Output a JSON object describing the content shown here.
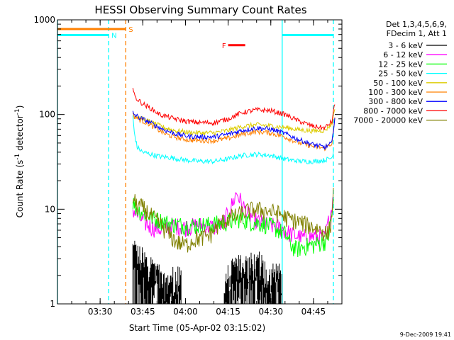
{
  "chart_data": {
    "type": "line",
    "title": "HESSI Observing Summary Count Rates",
    "xlabel": "Start Time (05-Apr-02 03:15:02)",
    "ylabel_main": "Count Rate (s",
    "ylabel_sup1": "-1",
    "ylabel_mid": " detector",
    "ylabel_sup2": "-1",
    "ylabel_end": ")",
    "y_scale": "log",
    "ylim": [
      1,
      1000
    ],
    "xlim_minutes": [
      0,
      100
    ],
    "x_ticks": [
      {
        "t": 15,
        "label": "03:30"
      },
      {
        "t": 30,
        "label": "03:45"
      },
      {
        "t": 45,
        "label": "04:00"
      },
      {
        "t": 60,
        "label": "04:15"
      },
      {
        "t": 75,
        "label": "04:30"
      },
      {
        "t": 90,
        "label": "04:45"
      }
    ],
    "y_ticks": [
      {
        "v": 1,
        "label": "1"
      },
      {
        "v": 10,
        "label": "10"
      },
      {
        "v": 100,
        "label": "100"
      },
      {
        "v": 1000,
        "label": "1000"
      }
    ],
    "legend_header": [
      "Det 1,3,4,5,6,9,",
      "FDecim 1, Att 1"
    ],
    "legend_position": "right",
    "series": [
      {
        "name": "3 - 6 keV",
        "color": "#000000",
        "x": [
          26.5,
          29,
          31,
          33,
          35,
          36,
          38,
          40,
          42,
          43,
          59,
          61,
          63,
          65,
          67,
          69,
          71,
          73,
          75,
          77.5,
          79
        ],
        "y": [
          3.5,
          2.8,
          2.5,
          2.3,
          2.5,
          1.6,
          1.5,
          1.8,
          1.6,
          1.8,
          1.6,
          2.0,
          2.2,
          2.5,
          2.3,
          2.4,
          2.5,
          2.0,
          1.8,
          2.6,
          1.5
        ]
      },
      {
        "name": "6 - 12 keV",
        "color": "#ff00ff",
        "x": [
          26.5,
          27.5,
          30,
          33,
          36,
          40,
          45,
          50,
          55,
          58,
          60,
          62,
          63,
          64,
          65,
          67,
          70,
          74,
          78,
          82,
          86,
          90,
          94,
          96.3,
          97
        ],
        "y": [
          10,
          9,
          7.5,
          6.5,
          6.2,
          6.8,
          6.5,
          6.8,
          6.5,
          7,
          9,
          12.5,
          15,
          13,
          11,
          9,
          7.5,
          6.8,
          6.5,
          5.5,
          5,
          5.2,
          5,
          10,
          15
        ]
      },
      {
        "name": "12 - 25 keV",
        "color": "#00ff00",
        "x": [
          26.5,
          28,
          31,
          34,
          37,
          40,
          45,
          50,
          55,
          58,
          61,
          64,
          67,
          70,
          73,
          76,
          80,
          82,
          84,
          87,
          90,
          93,
          95,
          96.3,
          97
        ],
        "y": [
          12,
          10,
          9,
          8,
          7.5,
          7,
          6.8,
          6.8,
          7,
          7.2,
          7.5,
          8,
          7.5,
          7.2,
          7,
          6.5,
          5.5,
          4.2,
          3.8,
          4.1,
          4.2,
          4.5,
          4.8,
          8,
          12
        ]
      },
      {
        "name": "25 - 50 keV",
        "color": "#00ffff",
        "x": [
          26.5,
          27,
          28,
          30,
          33,
          36,
          40,
          45,
          50,
          55,
          60,
          65,
          70,
          75,
          78,
          82,
          86,
          90,
          94,
          96.5,
          97
        ],
        "y": [
          95,
          65,
          45,
          40,
          38,
          36,
          35,
          33,
          32,
          32,
          34,
          37,
          38,
          37,
          35,
          33,
          32,
          32,
          33,
          35,
          42
        ]
      },
      {
        "name": "50 - 100 keV",
        "color": "#ddcc00",
        "x": [
          26.5,
          27,
          29,
          32,
          35,
          38,
          42,
          46,
          50,
          55,
          60,
          65,
          70,
          75,
          80,
          85,
          90,
          94,
          96.5,
          97.5
        ],
        "y": [
          105,
          98,
          92,
          85,
          78,
          72,
          67,
          65,
          64,
          64,
          68,
          75,
          78,
          76,
          73,
          69,
          67,
          68,
          80,
          120
        ]
      },
      {
        "name": "100 - 300 keV",
        "color": "#ff8000",
        "x": [
          26.5,
          27,
          29,
          32,
          35,
          38,
          42,
          46,
          50,
          55,
          60,
          65,
          70,
          75,
          80,
          85,
          90,
          94,
          96.5,
          97.5
        ],
        "y": [
          100,
          95,
          88,
          80,
          70,
          62,
          57,
          54,
          53,
          53,
          56,
          62,
          66,
          64,
          58,
          50,
          46,
          44,
          50,
          90
        ]
      },
      {
        "name": "300 - 800 keV",
        "color": "#0000ff",
        "x": [
          26.5,
          27,
          29,
          32,
          35,
          38,
          42,
          46,
          50,
          55,
          60,
          65,
          70,
          75,
          80,
          85,
          90,
          94,
          96.5,
          97.5
        ],
        "y": [
          105,
          100,
          92,
          84,
          75,
          68,
          62,
          59,
          58,
          58,
          62,
          68,
          72,
          70,
          63,
          54,
          48,
          45,
          50,
          95
        ]
      },
      {
        "name": "800 - 7000 keV",
        "color": "#ff0000",
        "x": [
          26.5,
          27,
          28,
          30,
          33,
          36,
          40,
          45,
          50,
          55,
          60,
          65,
          70,
          75,
          80,
          85,
          90,
          94,
          96.5,
          97.5
        ],
        "y": [
          190,
          160,
          145,
          130,
          115,
          100,
          92,
          85,
          82,
          82,
          90,
          105,
          112,
          110,
          100,
          85,
          75,
          72,
          85,
          130
        ]
      },
      {
        "name": "7000 - 20000 keV",
        "color": "#808000",
        "x": [
          26.5,
          28,
          30,
          33,
          36,
          39,
          42,
          45,
          48,
          51,
          54,
          57,
          60,
          63,
          66,
          69,
          72,
          75,
          78,
          81,
          84,
          87,
          90,
          93,
          95,
          96.5,
          97
        ],
        "y": [
          13,
          11,
          10.5,
          8.5,
          7,
          5.5,
          4.5,
          4.2,
          4.8,
          5,
          5.5,
          7,
          8,
          8.5,
          9.5,
          10,
          9.8,
          9.5,
          9,
          8,
          7.5,
          7,
          6.5,
          6,
          5.5,
          8,
          20
        ]
      }
    ],
    "flag_bars": [
      {
        "label": "S",
        "color": "#ff8000",
        "x0": 0,
        "x1": 24,
        "y": 800
      },
      {
        "label": "N",
        "color": "#00ffff",
        "x0": 0,
        "x1": 18,
        "y": 690
      },
      {
        "label": "",
        "color": "#00ffff",
        "x0": 79,
        "x1": 97,
        "y": 690
      },
      {
        "label": "F",
        "color": "#ff0000",
        "x0": 60,
        "x1": 66,
        "y": 540
      }
    ],
    "vertical_lines": [
      {
        "t": 0,
        "color": "#00ffff",
        "style": "solid"
      },
      {
        "t": 18,
        "color": "#00ffff",
        "style": "dashed"
      },
      {
        "t": 24,
        "color": "#ff8000",
        "style": "dashed"
      },
      {
        "t": 79,
        "color": "#00ffff",
        "style": "solid"
      },
      {
        "t": 97,
        "color": "#00ffff",
        "style": "dashed"
      }
    ]
  },
  "footer": {
    "timestamp": "9-Dec-2009 19:41"
  }
}
